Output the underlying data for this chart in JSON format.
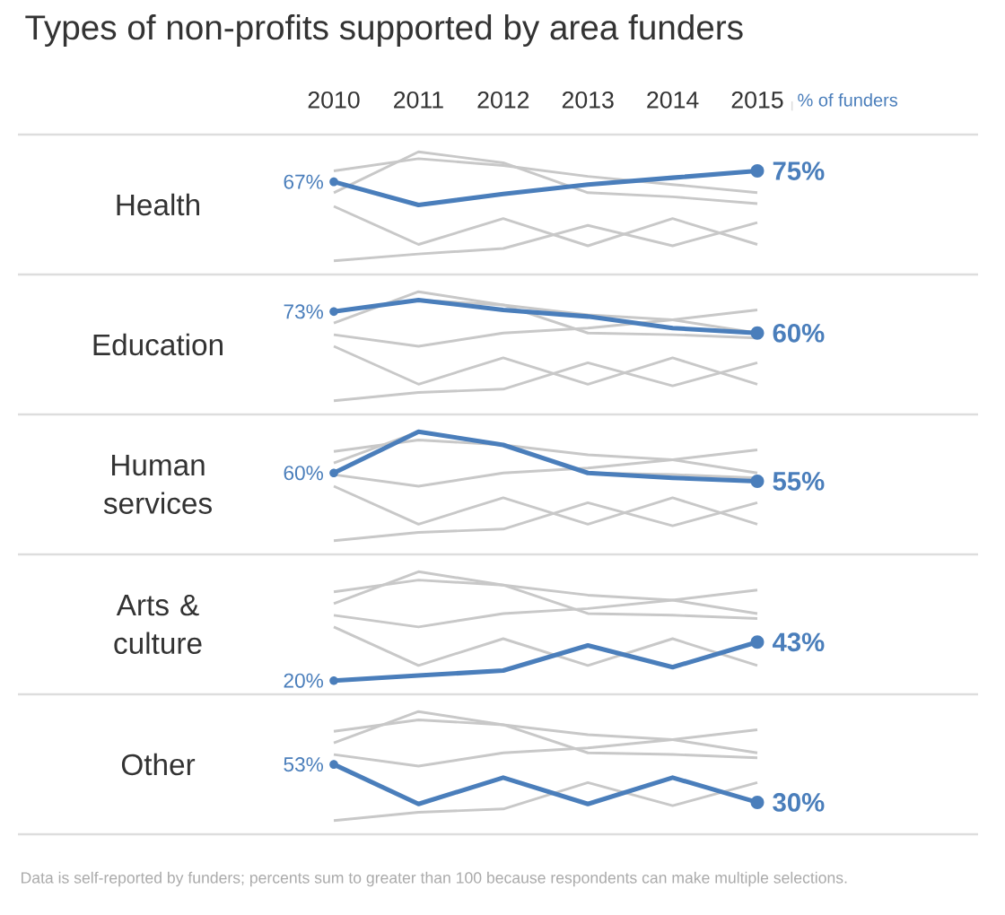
{
  "chart_data": [
    {
      "type": "line",
      "title": "Types of non-profits supported by area funders",
      "ylabel": "Health",
      "annotations": [
        "% of funders"
      ],
      "categories": [
        "2010",
        "2011",
        "2012",
        "2013",
        "2014",
        "2015"
      ],
      "tick_labels": "x",
      "series": [
        {
          "color": "#c8c8c8",
          "values": [
            75,
            84,
            79,
            71,
            65,
            59
          ]
        },
        {
          "color": "#c8c8c8",
          "values": [
            59,
            89,
            81,
            59,
            56,
            51
          ]
        },
        {
          "color": "#c8c8c8",
          "values": [
            49,
            21,
            40,
            20,
            40,
            21
          ]
        },
        {
          "color": "#c8c8c8",
          "values": [
            9,
            14,
            18,
            35,
            20,
            37
          ]
        },
        {
          "color": "#4a7ebb",
          "values": [
            67,
            50,
            58,
            65,
            70,
            75
          ],
          "value_labels": [
            "67%",
            null,
            null,
            null,
            null,
            "75%"
          ]
        }
      ]
    },
    {
      "type": "line",
      "ylabel": "Education",
      "categories": [
        "2010",
        "2011",
        "2012",
        "2013",
        "2014",
        "2015"
      ],
      "tick_labels": false,
      "series": [
        {
          "color": "#c8c8c8",
          "values": [
            73,
            80,
            77,
            71,
            68,
            60
          ]
        },
        {
          "color": "#c8c8c8",
          "values": [
            66,
            85,
            77,
            60,
            59,
            57
          ]
        },
        {
          "color": "#c8c8c8",
          "values": [
            59,
            52,
            60,
            63,
            68,
            74
          ]
        },
        {
          "color": "#c8c8c8",
          "values": [
            52,
            29,
            45,
            29,
            45,
            29
          ]
        },
        {
          "color": "#c8c8c8",
          "values": [
            19,
            24,
            26,
            42,
            28,
            42
          ]
        },
        {
          "color": "#4a7ebb",
          "values": [
            73,
            80,
            74,
            70,
            63,
            60
          ],
          "value_labels": [
            "73%",
            null,
            null,
            null,
            null,
            "60%"
          ]
        }
      ]
    },
    {
      "type": "line",
      "ylabel": "Human services",
      "categories": [
        "2010",
        "2011",
        "2012",
        "2013",
        "2014",
        "2015"
      ],
      "tick_labels": false,
      "series": [
        {
          "color": "#c8c8c8",
          "values": [
            73,
            80,
            77,
            71,
            68,
            60
          ]
        },
        {
          "color": "#c8c8c8",
          "values": [
            66,
            85,
            77,
            60,
            59,
            57
          ]
        },
        {
          "color": "#c8c8c8",
          "values": [
            59,
            52,
            60,
            63,
            68,
            74
          ]
        },
        {
          "color": "#c8c8c8",
          "values": [
            52,
            29,
            45,
            29,
            45,
            29
          ]
        },
        {
          "color": "#c8c8c8",
          "values": [
            19,
            24,
            26,
            42,
            28,
            42
          ]
        },
        {
          "color": "#4a7ebb",
          "values": [
            60,
            85,
            77,
            60,
            57,
            55
          ],
          "value_labels": [
            "60%",
            null,
            null,
            null,
            null,
            "55%"
          ]
        }
      ]
    },
    {
      "type": "line",
      "ylabel": "Arts & culture",
      "categories": [
        "2010",
        "2011",
        "2012",
        "2013",
        "2014",
        "2015"
      ],
      "tick_labels": false,
      "series": [
        {
          "color": "#c8c8c8",
          "values": [
            73,
            80,
            77,
            71,
            68,
            60
          ]
        },
        {
          "color": "#c8c8c8",
          "values": [
            66,
            85,
            77,
            60,
            59,
            57
          ]
        },
        {
          "color": "#c8c8c8",
          "values": [
            59,
            52,
            60,
            63,
            68,
            74
          ]
        },
        {
          "color": "#c8c8c8",
          "values": [
            52,
            29,
            45,
            29,
            45,
            29
          ]
        },
        {
          "color": "#4a7ebb",
          "values": [
            20,
            23,
            26,
            41,
            28,
            43
          ],
          "value_labels": [
            "20%",
            null,
            null,
            null,
            null,
            "43%"
          ]
        }
      ]
    },
    {
      "type": "line",
      "ylabel": "Other",
      "annotations": [
        "Data is self-reported by funders; percents sum to greater than 100 because respondents can make multiple selections."
      ],
      "categories": [
        "2010",
        "2011",
        "2012",
        "2013",
        "2014",
        "2015"
      ],
      "tick_labels": false,
      "series": [
        {
          "color": "#c8c8c8",
          "values": [
            73,
            80,
            77,
            71,
            68,
            60
          ]
        },
        {
          "color": "#c8c8c8",
          "values": [
            66,
            85,
            77,
            60,
            59,
            57
          ]
        },
        {
          "color": "#c8c8c8",
          "values": [
            59,
            52,
            60,
            63,
            68,
            74
          ]
        },
        {
          "color": "#c8c8c8",
          "values": [
            19,
            24,
            26,
            42,
            28,
            42
          ]
        },
        {
          "color": "#4a7ebb",
          "values": [
            53,
            29,
            45,
            29,
            45,
            30
          ],
          "value_labels": [
            "53%",
            null,
            null,
            null,
            null,
            "30%"
          ]
        }
      ]
    }
  ]
}
